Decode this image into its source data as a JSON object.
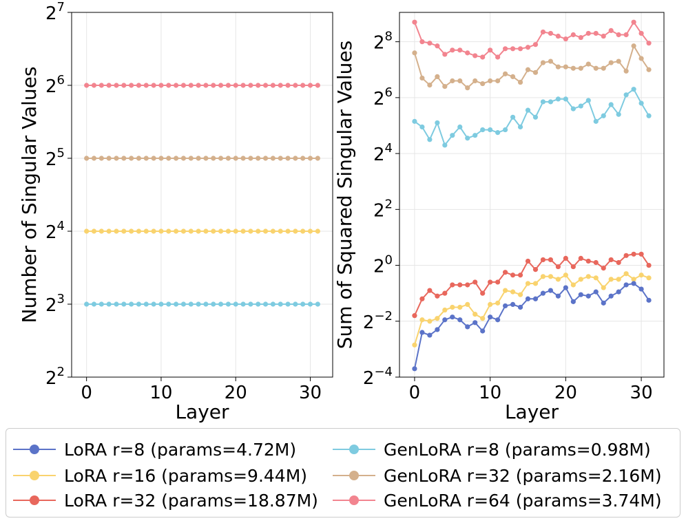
{
  "chart_data": [
    {
      "type": "line",
      "xlabel": "Layer",
      "ylabel": "Number of Singular Values",
      "yscale": "log2",
      "ylim_exponent": [
        2,
        7
      ],
      "xlim": [
        -2,
        33
      ],
      "x_ticks": [
        0,
        10,
        20,
        30
      ],
      "y_tick_exponents": [
        2,
        3,
        4,
        5,
        6,
        7
      ],
      "grid": true,
      "x": [
        0,
        1,
        2,
        3,
        4,
        5,
        6,
        7,
        8,
        9,
        10,
        11,
        12,
        13,
        14,
        15,
        16,
        17,
        18,
        19,
        20,
        21,
        22,
        23,
        24,
        25,
        26,
        27,
        28,
        29,
        30,
        31
      ],
      "series": [
        {
          "name": "GenLoRA r=64 (params=3.74M)",
          "color": "#f2848f",
          "constant": 64
        },
        {
          "name": "GenLoRA r=32 (params=2.16M)",
          "color": "#d4b08c",
          "constant": 32
        },
        {
          "name": "LoRA r=16 (params=9.44M)",
          "color": "#f9d36e",
          "constant": 16
        },
        {
          "name": "GenLoRA r=8 (params=0.98M)",
          "color": "#7ecbe0",
          "constant": 8
        }
      ]
    },
    {
      "type": "line",
      "xlabel": "Layer",
      "ylabel": "Sum of Squared Singular Values",
      "yscale": "log2",
      "ylim_exponent": [
        -4,
        9.05
      ],
      "xlim": [
        -2,
        33
      ],
      "x_ticks": [
        0,
        10,
        20,
        30
      ],
      "y_tick_exponents": [
        -4,
        -2,
        0,
        2,
        4,
        6,
        8
      ],
      "grid": true,
      "x": [
        0,
        1,
        2,
        3,
        4,
        5,
        6,
        7,
        8,
        9,
        10,
        11,
        12,
        13,
        14,
        15,
        16,
        17,
        18,
        19,
        20,
        21,
        22,
        23,
        24,
        25,
        26,
        27,
        28,
        29,
        30,
        31
      ],
      "series": [
        {
          "name": "GenLoRA r=64 (params=3.74M)",
          "color": "#f2848f",
          "log2_values": [
            8.7,
            8.0,
            7.95,
            7.85,
            7.55,
            7.7,
            7.7,
            7.6,
            7.5,
            7.45,
            7.7,
            7.45,
            7.75,
            7.75,
            7.75,
            7.8,
            7.9,
            8.35,
            8.3,
            8.2,
            8.1,
            8.25,
            8.15,
            8.3,
            8.3,
            8.2,
            8.4,
            8.25,
            8.25,
            8.7,
            8.3,
            7.95
          ]
        },
        {
          "name": "GenLoRA r=32 (params=2.16M)",
          "color": "#d4b08c",
          "log2_values": [
            7.6,
            6.7,
            6.45,
            6.75,
            6.4,
            6.6,
            6.6,
            6.35,
            6.6,
            6.5,
            6.6,
            6.6,
            6.85,
            6.75,
            6.55,
            7.0,
            6.9,
            7.25,
            7.3,
            7.1,
            7.1,
            7.05,
            7.05,
            7.2,
            7.05,
            7.05,
            7.25,
            7.3,
            6.95,
            7.85,
            7.4,
            7.0
          ]
        },
        {
          "name": "GenLoRA r=8 (params=0.98M)",
          "color": "#7ecbe0",
          "log2_values": [
            5.15,
            4.95,
            4.5,
            5.1,
            4.3,
            4.65,
            4.95,
            4.55,
            4.65,
            4.85,
            4.85,
            4.75,
            4.85,
            5.3,
            4.95,
            5.55,
            5.3,
            5.85,
            5.85,
            5.95,
            5.95,
            5.6,
            5.7,
            5.9,
            5.15,
            5.35,
            5.75,
            5.4,
            6.1,
            6.3,
            5.8,
            5.35
          ]
        },
        {
          "name": "LoRA r=32 (params=18.87M)",
          "color": "#e8675c",
          "log2_values": [
            -1.8,
            -1.2,
            -0.9,
            -1.1,
            -1.0,
            -0.7,
            -0.7,
            -0.7,
            -0.6,
            -1.0,
            -0.6,
            -0.6,
            -0.25,
            -0.35,
            -0.35,
            0.15,
            -0.15,
            0.2,
            0.2,
            -0.05,
            0.25,
            -0.05,
            0.25,
            0.15,
            0.1,
            -0.1,
            0.2,
            0.1,
            0.35,
            0.4,
            0.4,
            0.0
          ]
        },
        {
          "name": "LoRA r=16 (params=9.44M)",
          "color": "#f9d36e",
          "log2_values": [
            -2.85,
            -1.95,
            -2.0,
            -1.9,
            -1.6,
            -1.5,
            -1.5,
            -1.4,
            -1.75,
            -1.9,
            -1.4,
            -1.35,
            -0.9,
            -0.95,
            -1.05,
            -0.65,
            -0.65,
            -0.4,
            -0.4,
            -0.5,
            -0.35,
            -0.7,
            -0.5,
            -0.4,
            -0.45,
            -0.8,
            -0.5,
            -0.5,
            -0.3,
            -0.5,
            -0.35,
            -0.45
          ]
        },
        {
          "name": "LoRA r=8 (params=4.72M)",
          "color": "#5b73c8",
          "log2_values": [
            -3.7,
            -2.4,
            -2.5,
            -2.3,
            -1.95,
            -1.85,
            -1.95,
            -2.2,
            -2.05,
            -2.35,
            -1.85,
            -1.95,
            -1.45,
            -1.4,
            -1.5,
            -1.2,
            -1.2,
            -1.0,
            -0.9,
            -1.1,
            -0.8,
            -1.3,
            -1.05,
            -1.1,
            -0.95,
            -1.35,
            -1.1,
            -0.95,
            -0.7,
            -0.65,
            -0.85,
            -1.25
          ]
        }
      ]
    }
  ],
  "legend": {
    "placement": "bottom",
    "items": [
      {
        "label": "LoRA r=8 (params=4.72M)",
        "color": "#5b73c8"
      },
      {
        "label": "GenLoRA r=8 (params=0.98M)",
        "color": "#7ecbe0"
      },
      {
        "label": "LoRA r=16 (params=9.44M)",
        "color": "#f9d36e"
      },
      {
        "label": "GenLoRA r=32 (params=2.16M)",
        "color": "#d4b08c"
      },
      {
        "label": "LoRA r=32 (params=18.87M)",
        "color": "#e8675c"
      },
      {
        "label": "GenLoRA r=64 (params=3.74M)",
        "color": "#f2848f"
      }
    ]
  }
}
